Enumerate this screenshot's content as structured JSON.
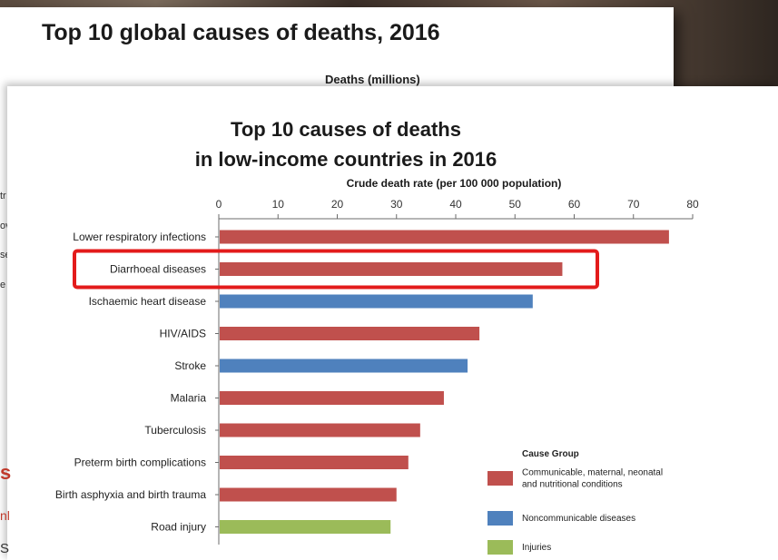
{
  "back_slide": {
    "title": "Top 10 global causes of deaths, 2016",
    "axis_label": "Deaths (millions)"
  },
  "side_fragments": [
    "tr",
    "ov",
    "se",
    "e"
  ],
  "peek_fragments": {
    "red_letter": "s",
    "red_fragment": "nl",
    "dark_fragment": "S"
  },
  "chart_data": {
    "type": "bar",
    "orientation": "horizontal",
    "title": [
      "Top 10 causes of deaths",
      "in low-income countries in 2016"
    ],
    "xlabel": "Crude death rate (per 100 000 population)",
    "xlim": [
      0,
      80
    ],
    "xticks": [
      0,
      10,
      20,
      30,
      40,
      50,
      60,
      70,
      80
    ],
    "categories": [
      "Lower respiratory infections",
      "Diarrhoeal diseases",
      "Ischaemic heart disease",
      "HIV/AIDS",
      "Stroke",
      "Malaria",
      "Tuberculosis",
      "Preterm birth complications",
      "Birth asphyxia and birth trauma",
      "Road injury"
    ],
    "values": [
      76,
      58,
      53,
      44,
      42,
      38,
      34,
      32,
      30,
      29
    ],
    "groups": [
      0,
      0,
      1,
      0,
      1,
      0,
      0,
      0,
      0,
      2
    ],
    "highlighted": "Diarrhoeal diseases",
    "grid": false,
    "legend": {
      "title": "Cause Group",
      "placement": "bottom-right",
      "entries": [
        {
          "label": [
            "Communicable, maternal, neonatal",
            "and nutritional conditions"
          ],
          "color": "#c0504d"
        },
        {
          "label": [
            "Noncommunicable diseases"
          ],
          "color": "#4f81bd"
        },
        {
          "label": [
            "Injuries"
          ],
          "color": "#9bbb59"
        }
      ]
    }
  },
  "colors": {
    "highlight": "#e31b1b",
    "axis": "#6b6b6b"
  }
}
